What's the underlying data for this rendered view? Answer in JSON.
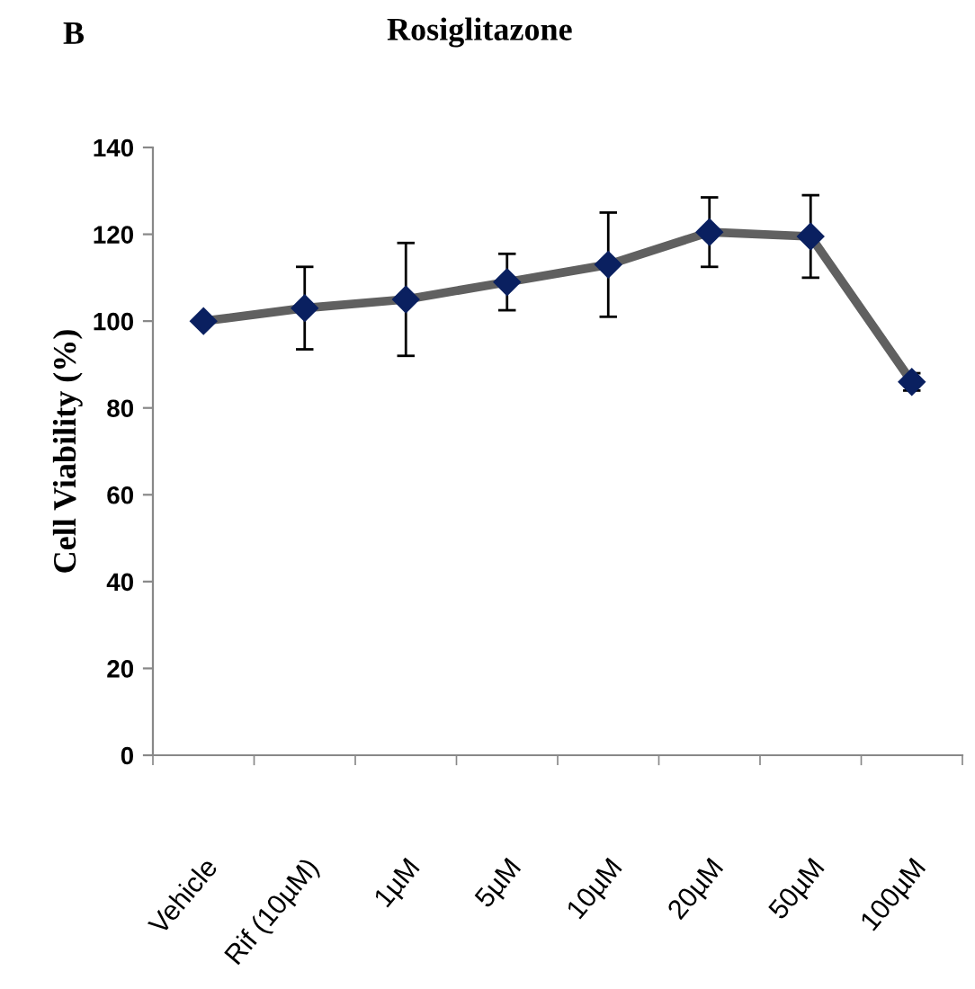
{
  "chart_data": {
    "type": "line",
    "title": "Rosiglitazone",
    "ylabel": "Cell Viability (%)",
    "annotations": [
      "B"
    ],
    "categories": [
      "Vehicle",
      "Rif (10µM)",
      "1µM",
      "5µM",
      "10µM",
      "20µM",
      "50µM",
      "100µM"
    ],
    "series": [
      {
        "color": "#606060",
        "values": [
          100,
          103,
          105,
          109,
          113,
          120.5,
          119.5,
          86
        ],
        "errors": [
          null,
          9.5,
          13,
          6.5,
          12,
          8,
          9.5,
          2
        ]
      }
    ],
    "ylim": [
      0,
      140
    ],
    "yticks": [
      0,
      20,
      40,
      60,
      80,
      100,
      120,
      140
    ],
    "grid": false,
    "legend": false,
    "marker": "diamond",
    "line_style": "solid"
  }
}
